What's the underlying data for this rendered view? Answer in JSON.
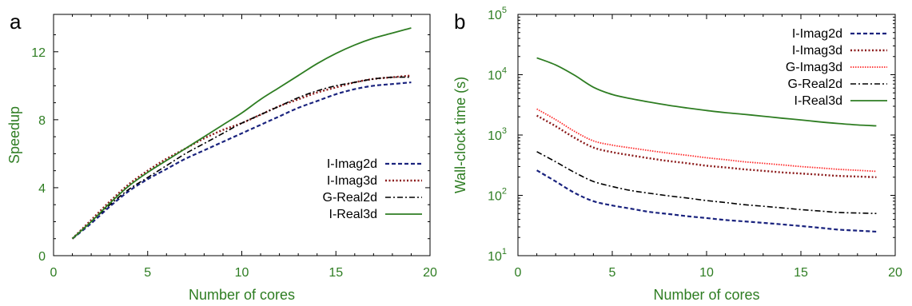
{
  "chart_data": [
    {
      "panel": "a",
      "type": "line",
      "title": "",
      "xlabel": "Number of cores",
      "ylabel": "Speedup",
      "xlim": [
        0,
        20
      ],
      "ylim": [
        0,
        14.2
      ],
      "y_scale": "linear",
      "xticks": [
        "0",
        "5",
        "10",
        "15",
        "20"
      ],
      "yticks": [
        "0",
        "4",
        "8",
        "12"
      ],
      "legend_position": "center-right",
      "series": [
        {
          "name": "I-Imag2d",
          "color": "#1a237e",
          "dash": "dashed",
          "x": [
            1,
            2,
            3,
            4,
            5,
            6,
            7,
            8,
            9,
            10,
            11,
            12,
            13,
            14,
            15,
            16,
            17,
            18,
            19
          ],
          "y": [
            1.0,
            1.9,
            2.9,
            3.8,
            4.5,
            5.1,
            5.7,
            6.2,
            6.7,
            7.2,
            7.7,
            8.2,
            8.7,
            9.1,
            9.5,
            9.8,
            10.0,
            10.1,
            10.2
          ]
        },
        {
          "name": "I-Imag3d",
          "color": "#8b1a1a",
          "dash": "dotted",
          "x": [
            1,
            2,
            3,
            4,
            5,
            6,
            7,
            8,
            9,
            10,
            11,
            12,
            13,
            14,
            15,
            16,
            17,
            18,
            19
          ],
          "y": [
            1.0,
            2.1,
            3.2,
            4.2,
            5.0,
            5.7,
            6.3,
            6.9,
            7.4,
            7.8,
            8.3,
            8.8,
            9.2,
            9.6,
            9.9,
            10.2,
            10.4,
            10.5,
            10.6
          ]
        },
        {
          "name": "G-Real2d",
          "color": "#000000",
          "dash": "dashdot",
          "x": [
            1,
            2,
            3,
            4,
            5,
            6,
            7,
            8,
            9,
            10,
            11,
            12,
            13,
            14,
            15,
            16,
            17,
            18,
            19
          ],
          "y": [
            1.0,
            2.0,
            3.0,
            3.9,
            4.6,
            5.3,
            6.0,
            6.6,
            7.2,
            7.8,
            8.3,
            8.8,
            9.3,
            9.7,
            10.0,
            10.2,
            10.4,
            10.5,
            10.5
          ]
        },
        {
          "name": "I-Real3d",
          "color": "#2e7d22",
          "dash": "solid",
          "x": [
            1,
            2,
            3,
            4,
            5,
            6,
            7,
            8,
            9,
            10,
            11,
            12,
            13,
            14,
            15,
            16,
            17,
            18,
            19
          ],
          "y": [
            1.0,
            2.0,
            3.1,
            4.1,
            4.9,
            5.6,
            6.3,
            7.0,
            7.7,
            8.4,
            9.2,
            9.9,
            10.6,
            11.3,
            11.9,
            12.4,
            12.8,
            13.1,
            13.4
          ]
        }
      ]
    },
    {
      "panel": "b",
      "type": "line",
      "title": "",
      "xlabel": "Number of cores",
      "ylabel": "Wall-clock time (s)",
      "xlim": [
        0,
        20
      ],
      "ylim": [
        10,
        100000
      ],
      "y_scale": "log",
      "xticks": [
        "0",
        "5",
        "10",
        "15",
        "20"
      ],
      "yticks": [
        {
          "value": 10,
          "base": "10",
          "exp": "1"
        },
        {
          "value": 100,
          "base": "10",
          "exp": "2"
        },
        {
          "value": 1000,
          "base": "10",
          "exp": "3"
        },
        {
          "value": 10000,
          "base": "10",
          "exp": "4"
        },
        {
          "value": 100000,
          "base": "10",
          "exp": "5"
        }
      ],
      "legend_position": "top-right",
      "series": [
        {
          "name": "I-Imag2d",
          "color": "#1a237e",
          "dash": "dashed",
          "x": [
            1,
            2,
            3,
            4,
            5,
            6,
            7,
            8,
            9,
            10,
            11,
            12,
            13,
            14,
            15,
            16,
            17,
            18,
            19
          ],
          "y": [
            260,
            170,
            110,
            80,
            68,
            60,
            53,
            49,
            45,
            42,
            39,
            37,
            35,
            33,
            31,
            29,
            27,
            26,
            25
          ]
        },
        {
          "name": "I-Imag3d",
          "color": "#8b1a1a",
          "dash": "dotted",
          "x": [
            1,
            2,
            3,
            4,
            5,
            6,
            7,
            8,
            9,
            10,
            11,
            12,
            13,
            14,
            15,
            16,
            17,
            18,
            19
          ],
          "y": [
            2100,
            1400,
            900,
            620,
            520,
            460,
            410,
            370,
            340,
            310,
            290,
            270,
            255,
            240,
            230,
            220,
            210,
            205,
            200
          ]
        },
        {
          "name": "G-Imag3d",
          "color": "#ff2a2a",
          "dash": "dotted-fine",
          "x": [
            1,
            2,
            3,
            4,
            5,
            6,
            7,
            8,
            9,
            10,
            11,
            12,
            13,
            14,
            15,
            16,
            17,
            18,
            19
          ],
          "y": [
            2700,
            1800,
            1150,
            800,
            680,
            610,
            550,
            500,
            460,
            420,
            390,
            360,
            340,
            320,
            300,
            285,
            270,
            260,
            250
          ]
        },
        {
          "name": "G-Real2d",
          "color": "#000000",
          "dash": "dashdot",
          "x": [
            1,
            2,
            3,
            4,
            5,
            6,
            7,
            8,
            9,
            10,
            11,
            12,
            13,
            14,
            15,
            16,
            17,
            18,
            19
          ],
          "y": [
            530,
            360,
            240,
            170,
            140,
            120,
            108,
            98,
            90,
            82,
            76,
            70,
            66,
            62,
            58,
            55,
            52,
            51,
            50
          ]
        },
        {
          "name": "I-Real3d",
          "color": "#2e7d22",
          "dash": "solid",
          "x": [
            1,
            2,
            3,
            4,
            5,
            6,
            7,
            8,
            9,
            10,
            11,
            12,
            13,
            14,
            15,
            16,
            17,
            18,
            19
          ],
          "y": [
            19000,
            14500,
            9800,
            6200,
            4700,
            4000,
            3500,
            3100,
            2800,
            2550,
            2350,
            2200,
            2050,
            1900,
            1780,
            1650,
            1550,
            1470,
            1420
          ]
        }
      ]
    }
  ]
}
